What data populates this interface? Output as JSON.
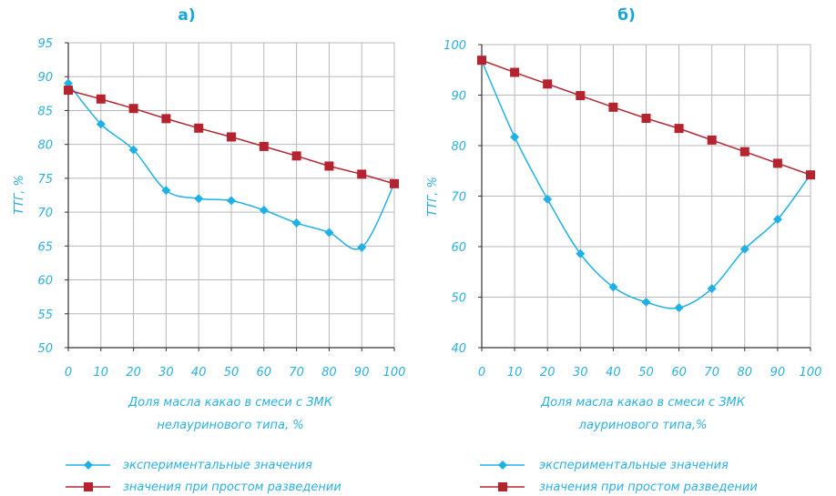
{
  "colors": {
    "accent_text": "#2AB0E0",
    "title_text": "#1AA3DB",
    "experimental": "#1FB0E8",
    "dilution": "#B5232F",
    "grid": "#B8B8B8",
    "axis": "#333333"
  },
  "chart_data": [
    {
      "type": "line",
      "title": "а)",
      "ylabel": "ТТГ, %",
      "xlabel_line1": "Доля масла какао в смеси с ЗМК",
      "xlabel_line2": "нелауринового  типа, %",
      "xlim": [
        0,
        100
      ],
      "ylim": [
        50,
        95
      ],
      "x_ticks": [
        "0",
        "10",
        "20",
        "30",
        "40",
        "50",
        "60",
        "70",
        "80",
        "90",
        "100"
      ],
      "y_ticks": [
        "50",
        "55",
        "60",
        "65",
        "70",
        "75",
        "80",
        "85",
        "90",
        "95"
      ],
      "grid": true,
      "legend_position": "bottom",
      "series": [
        {
          "name": "экспериментальные значения",
          "marker": "diamond",
          "x": [
            0,
            10,
            20,
            30,
            40,
            50,
            60,
            70,
            80,
            90,
            100
          ],
          "y": [
            89,
            83,
            79.2,
            73.2,
            72,
            71.7,
            70.3,
            68.4,
            67,
            64.8,
            74.2
          ]
        },
        {
          "name": "значения при простом разведении",
          "marker": "square",
          "x": [
            0,
            10,
            20,
            30,
            40,
            50,
            60,
            70,
            80,
            90,
            100
          ],
          "y": [
            88,
            86.7,
            85.3,
            83.8,
            82.4,
            81.1,
            79.7,
            78.3,
            76.8,
            75.6,
            74.2
          ]
        }
      ]
    },
    {
      "type": "line",
      "title": "б)",
      "ylabel": "ТТГ, %",
      "xlabel_line1": "Доля масла какао в смеси с ЗМК",
      "xlabel_line2": "лауринового  типа,%",
      "xlim": [
        0,
        100
      ],
      "ylim": [
        40,
        100
      ],
      "x_ticks": [
        "0",
        "10",
        "20",
        "30",
        "40",
        "50",
        "60",
        "70",
        "80",
        "90",
        "100"
      ],
      "y_ticks": [
        "40",
        "50",
        "60",
        "70",
        "80",
        "90",
        "100"
      ],
      "grid": true,
      "legend_position": "bottom",
      "series": [
        {
          "name": "экспериментальные значения",
          "marker": "diamond",
          "x": [
            0,
            10,
            20,
            30,
            40,
            50,
            60,
            70,
            80,
            90,
            100
          ],
          "y": [
            96.8,
            81.7,
            69.4,
            58.6,
            52,
            49,
            47.9,
            51.7,
            59.5,
            65.4,
            74.3
          ]
        },
        {
          "name": "значения при простом разведении",
          "marker": "square",
          "x": [
            0,
            10,
            20,
            30,
            40,
            50,
            60,
            70,
            80,
            90,
            100
          ],
          "y": [
            96.9,
            94.5,
            92.2,
            89.9,
            87.6,
            85.4,
            83.4,
            81.1,
            78.8,
            76.5,
            74.2
          ]
        }
      ]
    }
  ]
}
